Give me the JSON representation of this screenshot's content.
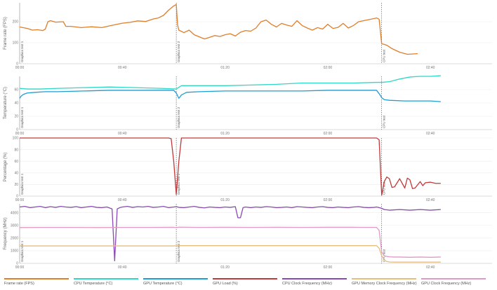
{
  "chart_data": [
    {
      "type": "line",
      "ylabel": "Frame rate (FPS)",
      "yticks": [
        0,
        100,
        200
      ],
      "ylim": [
        0,
        290
      ],
      "xlim": [
        0,
        184
      ],
      "xticks": [
        "00:00",
        "00:40",
        "01:20",
        "02:00",
        "02:40"
      ],
      "markers": [
        {
          "x": 0,
          "label": "Graphics test 1"
        },
        {
          "x": 61,
          "label": "Graphics test 2"
        },
        {
          "x": 141,
          "label": "CPU test"
        }
      ],
      "grid": true,
      "series": [
        {
          "name": "Frame rate (FPS)",
          "color": "#e07e2a",
          "x": [
            0,
            3,
            5,
            7,
            9,
            10,
            11,
            12,
            14,
            17,
            18,
            20,
            24,
            28,
            32,
            36,
            40,
            43,
            46,
            49,
            52,
            54,
            56,
            58,
            60,
            61,
            61.5,
            62,
            64,
            66,
            68,
            70,
            72,
            74,
            76,
            78,
            80,
            82,
            84,
            86,
            88,
            90,
            92,
            94,
            96,
            98,
            100,
            102,
            104,
            106,
            108,
            110,
            112,
            114,
            116,
            118,
            120,
            122,
            124,
            126,
            128,
            130,
            132,
            134,
            136,
            138,
            139,
            140,
            141,
            142,
            143,
            145,
            148,
            151,
            155
          ],
          "values": [
            175,
            168,
            160,
            162,
            158,
            165,
            200,
            205,
            198,
            200,
            178,
            178,
            172,
            176,
            172,
            183,
            193,
            197,
            204,
            201,
            213,
            218,
            230,
            255,
            275,
            282,
            185,
            160,
            148,
            160,
            138,
            128,
            118,
            126,
            134,
            130,
            138,
            143,
            132,
            150,
            158,
            155,
            170,
            200,
            208,
            188,
            175,
            192,
            184,
            178,
            205,
            182,
            170,
            160,
            172,
            165,
            188,
            168,
            173,
            192,
            170,
            182,
            200,
            205,
            210,
            215,
            218,
            212,
            95,
            92,
            88,
            72,
            55,
            45,
            48
          ]
        }
      ]
    },
    {
      "type": "line",
      "ylabel": "Temperature (°C)",
      "yticks": [
        0,
        20,
        40,
        60
      ],
      "ylim": [
        0,
        80
      ],
      "xlim": [
        0,
        184
      ],
      "xticks": [
        "00:00",
        "00:40",
        "01:20",
        "02:00",
        "02:40"
      ],
      "markers": [
        {
          "x": 0,
          "label": "Graphics test 1"
        },
        {
          "x": 61,
          "label": "Graphics test 2"
        },
        {
          "x": 141,
          "label": "CPU test"
        }
      ],
      "grid": true,
      "series": [
        {
          "name": "CPU Temperature (°C)",
          "color": "#2fd7c4",
          "x": [
            0,
            3,
            8,
            15,
            25,
            35,
            45,
            55,
            61,
            63,
            70,
            80,
            90,
            100,
            110,
            120,
            130,
            139,
            141,
            144,
            148,
            152,
            156,
            160,
            164
          ],
          "values": [
            62,
            61,
            61,
            62,
            63,
            64,
            63,
            62,
            61,
            66,
            66,
            66,
            67,
            68,
            70,
            70,
            70,
            71,
            71,
            72,
            76,
            79,
            80,
            80,
            81
          ]
        },
        {
          "name": "GPU Temperature (°C)",
          "color": "#1e9ed2",
          "x": [
            0,
            0.5,
            1.5,
            3,
            6,
            10,
            15,
            25,
            35,
            45,
            55,
            60,
            61,
            62,
            63,
            65,
            70,
            80,
            90,
            100,
            110,
            120,
            130,
            139,
            140,
            141,
            142,
            144,
            150,
            160,
            164
          ],
          "values": [
            47,
            50,
            53,
            55,
            56,
            57,
            57,
            58,
            59,
            59,
            59,
            59,
            55,
            47,
            52,
            56,
            57,
            58,
            58,
            58,
            58,
            59,
            59,
            59,
            54,
            48,
            45,
            44,
            43,
            43,
            42
          ]
        }
      ]
    },
    {
      "type": "line",
      "ylabel": "Percentage (%)",
      "yticks": [
        0,
        20,
        40,
        60,
        80,
        100
      ],
      "ylim": [
        0,
        100
      ],
      "xlim": [
        0,
        184
      ],
      "xticks": [
        "00:00",
        "00:40",
        "01:20",
        "02:00",
        "02:40"
      ],
      "markers": [
        {
          "x": 0,
          "label": "Graphics test 1"
        },
        {
          "x": 61,
          "label": "Graphics test 2"
        },
        {
          "x": 141,
          "label": "CPU test"
        }
      ],
      "grid": true,
      "series": [
        {
          "name": "GPU Load (%)",
          "color": "#c0393b",
          "x": [
            0,
            1,
            50,
            58,
            59,
            60,
            61,
            62,
            63,
            139,
            140,
            141,
            142,
            143,
            144,
            145,
            146,
            148,
            150,
            151,
            152,
            153,
            154,
            156,
            157,
            158,
            160,
            162,
            164
          ],
          "values": [
            100,
            100,
            100,
            100,
            99,
            60,
            3,
            60,
            100,
            100,
            97,
            2,
            25,
            33,
            30,
            15,
            16,
            30,
            14,
            31,
            28,
            13,
            14,
            25,
            18,
            23,
            24,
            22,
            22
          ]
        }
      ]
    },
    {
      "type": "line",
      "ylabel": "Frequency (MHz)",
      "yticks": [
        0,
        1000,
        2000,
        3000,
        4000
      ],
      "ylim": [
        0,
        4700
      ],
      "xlim": [
        0,
        184
      ],
      "xticks": [
        "00:00",
        "00:40",
        "01:20",
        "02:00",
        "02:40"
      ],
      "markers": [
        {
          "x": 0,
          "label": "Graphics test 1"
        },
        {
          "x": 61,
          "label": "Graphics test 2"
        },
        {
          "x": 141,
          "label": "CPU test"
        }
      ],
      "grid": true,
      "series": [
        {
          "name": "CPU Clock Frequency (MHz)",
          "color": "#8a49b3",
          "x": [
            0,
            2,
            4,
            6,
            8,
            10,
            12,
            14,
            16,
            18,
            20,
            22,
            24,
            26,
            28,
            30,
            32,
            34,
            36,
            37,
            38,
            39,
            40,
            42,
            44,
            46,
            48,
            50,
            52,
            54,
            56,
            58,
            60,
            61,
            62,
            64,
            66,
            68,
            70,
            72,
            74,
            76,
            78,
            80,
            82,
            84,
            85,
            86,
            87,
            88,
            90,
            92,
            94,
            96,
            98,
            100,
            102,
            104,
            106,
            108,
            110,
            112,
            114,
            116,
            118,
            120,
            122,
            124,
            126,
            128,
            130,
            132,
            134,
            136,
            138,
            139,
            140,
            141,
            142,
            144,
            148,
            152,
            156,
            160,
            164
          ],
          "values": [
            4450,
            4500,
            4400,
            4450,
            4500,
            4400,
            4480,
            4420,
            4500,
            4450,
            4420,
            4480,
            4400,
            4450,
            4500,
            4420,
            4400,
            4450,
            4300,
            200,
            4300,
            4400,
            4450,
            4500,
            4420,
            4480,
            4450,
            4500,
            4420,
            4450,
            4500,
            4400,
            4450,
            4480,
            4420,
            4400,
            4450,
            4500,
            4420,
            4380,
            4450,
            4420,
            4400,
            4450,
            4420,
            4480,
            3600,
            3600,
            4400,
            4450,
            4400,
            4450,
            4420,
            4480,
            4450,
            4400,
            4420,
            4450,
            4400,
            4480,
            4450,
            4420,
            4400,
            4450,
            4480,
            4420,
            4400,
            4450,
            4420,
            4400,
            4450,
            4480,
            4420,
            4400,
            4420,
            4450,
            4400,
            4350,
            4250,
            4200,
            4250,
            4200,
            4250,
            4200,
            4250
          ]
        },
        {
          "name": "GPU Memory Clock Frequency (MHz)",
          "color": "#e5be7e",
          "x": [
            0,
            60,
            61,
            62,
            139,
            140,
            141,
            142,
            143,
            144,
            146,
            148,
            150,
            164
          ],
          "values": [
            1380,
            1380,
            1390,
            1400,
            1400,
            1200,
            600,
            250,
            150,
            110,
            100,
            100,
            100,
            100
          ]
        },
        {
          "name": "GPU Clock Frequency (MHz)",
          "color": "#e09ac5",
          "x": [
            0,
            10,
            20,
            30,
            40,
            50,
            60,
            61,
            62,
            70,
            80,
            90,
            100,
            110,
            120,
            130,
            139,
            140,
            141,
            142,
            143,
            144,
            146,
            148,
            152,
            156,
            160,
            164
          ],
          "values": [
            2830,
            2840,
            2840,
            2830,
            2840,
            2840,
            2850,
            2820,
            2860,
            2840,
            2850,
            2840,
            2850,
            2840,
            2850,
            2850,
            2840,
            2600,
            900,
            600,
            550,
            520,
            500,
            500,
            480,
            500,
            480,
            500
          ]
        }
      ]
    }
  ],
  "legend": [
    {
      "label": "Frame rate (FPS)",
      "color": "#e07e2a"
    },
    {
      "label": "CPU Temperature (°C)",
      "color": "#2fd7c4"
    },
    {
      "label": "GPU Temperature (°C)",
      "color": "#1e9ed2"
    },
    {
      "label": "GPU Load (%)",
      "color": "#c0393b"
    },
    {
      "label": "CPU Clock Frequency (MHz)",
      "color": "#8a49b3"
    },
    {
      "label": "GPU Memory Clock Frequency (MHz)",
      "color": "#e5be7e"
    },
    {
      "label": "GPU Clock Frequency (MHz)",
      "color": "#e09ac5"
    }
  ]
}
